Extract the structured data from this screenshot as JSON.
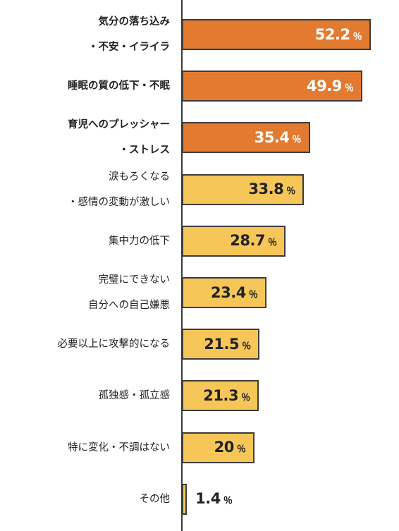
{
  "chart_data": {
    "type": "bar",
    "orientation": "horizontal",
    "categories": [
      [
        "気分の落ち込み",
        "・不安・イライラ"
      ],
      [
        "睡眠の質の低下・不眠"
      ],
      [
        "育児へのプレッシャー",
        "・ストレス"
      ],
      [
        "涙もろくなる",
        "・感情の変動が激しい"
      ],
      [
        "集中力の低下"
      ],
      [
        "完璧にできない",
        "自分への自己嫌悪"
      ],
      [
        "必要以上に攻撃的になる"
      ],
      [
        "孤独感・孤立感"
      ],
      [
        "特に変化・不調はない"
      ],
      [
        "その他"
      ]
    ],
    "values": [
      52.2,
      49.9,
      35.4,
      33.8,
      28.7,
      23.4,
      21.5,
      21.3,
      20,
      1.4
    ],
    "value_labels": [
      "52.2",
      "49.9",
      "35.4",
      "33.8",
      "28.7",
      "23.4",
      "21.5",
      "21.3",
      "20",
      "1.4"
    ],
    "unit": "％",
    "highlighted_count": 3,
    "colors": {
      "highlight": "#e27b30",
      "normal": "#f6c758",
      "border": "#3c3c3c"
    },
    "xlim": [
      0,
      55
    ],
    "grid": false,
    "legend": "none"
  }
}
